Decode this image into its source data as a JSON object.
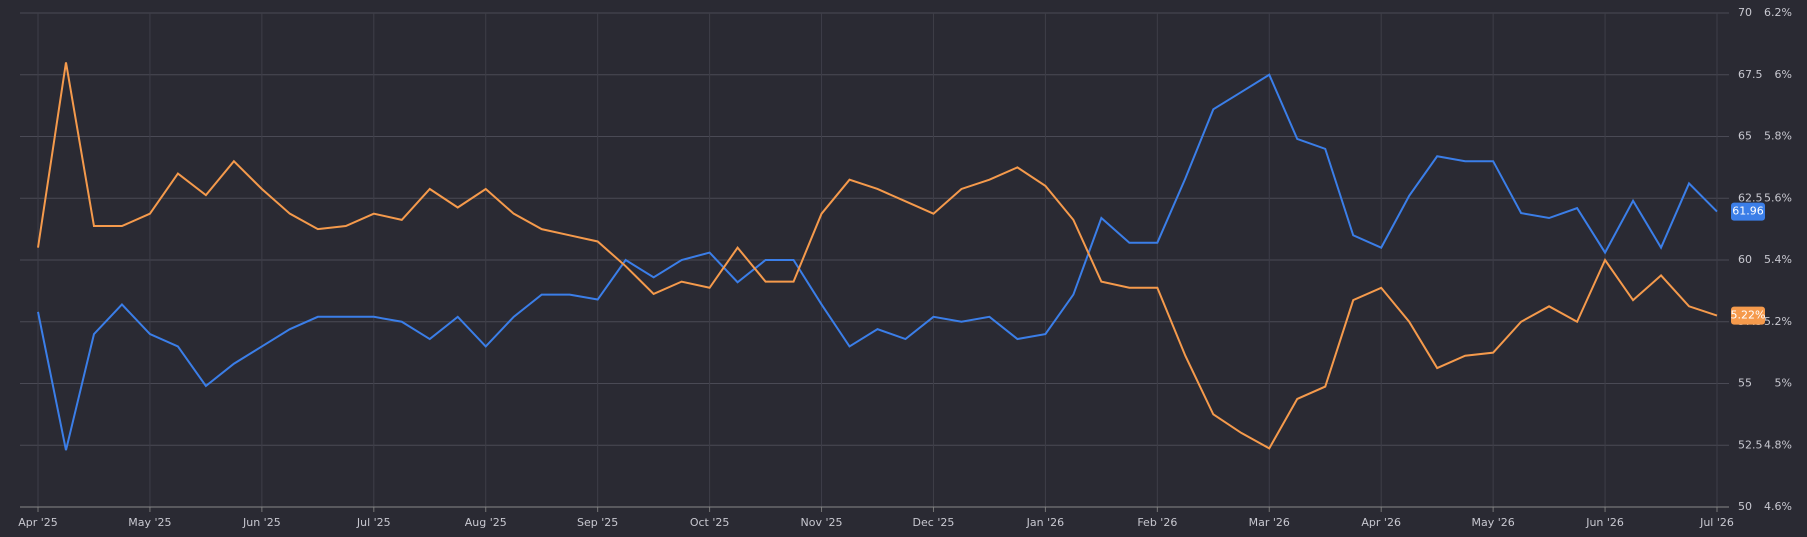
{
  "chart_data": {
    "type": "line",
    "categories": [
      "Apr '25",
      null,
      null,
      null,
      "May '25",
      null,
      null,
      null,
      "Jun '25",
      null,
      null,
      null,
      "Jul '25",
      null,
      null,
      null,
      "Aug '25",
      null,
      null,
      null,
      "Sep '25",
      null,
      null,
      null,
      "Oct '25",
      null,
      null,
      null,
      "Nov '25",
      null,
      null,
      null,
      "Dec '25",
      null,
      null,
      null,
      "Jan '26",
      null,
      null,
      null,
      "Feb '26",
      null,
      null,
      null,
      "Mar '26",
      null,
      null,
      null,
      "Apr '26",
      null,
      null,
      null,
      "May '26",
      null,
      null,
      null,
      "Jun '26",
      null,
      null,
      null,
      "Jul '26"
    ],
    "series": [
      {
        "color": "#3b7ee8",
        "last_value_label": "61.96",
        "values": [
          57.9,
          52.3,
          57.0,
          58.2,
          57.0,
          56.5,
          54.9,
          55.8,
          56.5,
          57.2,
          57.7,
          57.7,
          57.7,
          57.5,
          56.8,
          57.7,
          56.5,
          57.7,
          58.6,
          58.6,
          58.4,
          60.0,
          59.3,
          60.0,
          60.3,
          59.1,
          60.0,
          60.0,
          58.2,
          56.5,
          57.2,
          56.8,
          57.7,
          57.5,
          57.7,
          56.8,
          57.0,
          58.6,
          61.7,
          60.7,
          60.7,
          63.3,
          66.1,
          66.8,
          67.5,
          64.9,
          64.5,
          61.0,
          60.5,
          62.6,
          64.2,
          64.0,
          64.0,
          61.9,
          61.7,
          62.1,
          60.3,
          62.4,
          60.5,
          63.1,
          61.96
        ]
      },
      {
        "color": "#f59a4c",
        "axis": "y2",
        "last_value_label": "5.22%",
        "values": [
          5.44,
          6.04,
          5.51,
          5.51,
          5.55,
          5.68,
          5.61,
          5.72,
          5.63,
          5.55,
          5.5,
          5.51,
          5.55,
          5.53,
          5.63,
          5.57,
          5.63,
          5.55,
          5.5,
          5.48,
          5.46,
          5.38,
          5.29,
          5.33,
          5.31,
          5.44,
          5.33,
          5.33,
          5.55,
          5.66,
          5.63,
          5.59,
          5.55,
          5.63,
          5.66,
          5.7,
          5.64,
          5.53,
          5.33,
          5.31,
          5.31,
          5.09,
          4.9,
          4.84,
          4.79,
          4.95,
          4.99,
          5.27,
          5.31,
          5.2,
          5.05,
          5.09,
          5.1,
          5.2,
          5.25,
          5.2,
          5.4,
          5.27,
          5.35,
          5.25,
          5.22
        ]
      }
    ],
    "ylim": [
      50,
      70
    ],
    "yticks": [
      50,
      52.5,
      55,
      57.5,
      60,
      62.5,
      65,
      67.5,
      70
    ],
    "y2lim": [
      4.6,
      6.2
    ],
    "y2ticks": [
      {
        "value": 4.6,
        "label": "4.6%"
      },
      {
        "value": 4.8,
        "label": "4.8%"
      },
      {
        "value": 5.0,
        "label": "5%"
      },
      {
        "value": 5.2,
        "label": "5.2%"
      },
      {
        "value": 5.4,
        "label": "5.4%"
      },
      {
        "value": 5.6,
        "label": "5.6%"
      },
      {
        "value": 5.8,
        "label": "5.8%"
      },
      {
        "value": 6.0,
        "label": "6%"
      },
      {
        "value": 6.2,
        "label": "6.2%"
      }
    ],
    "grid": true
  }
}
